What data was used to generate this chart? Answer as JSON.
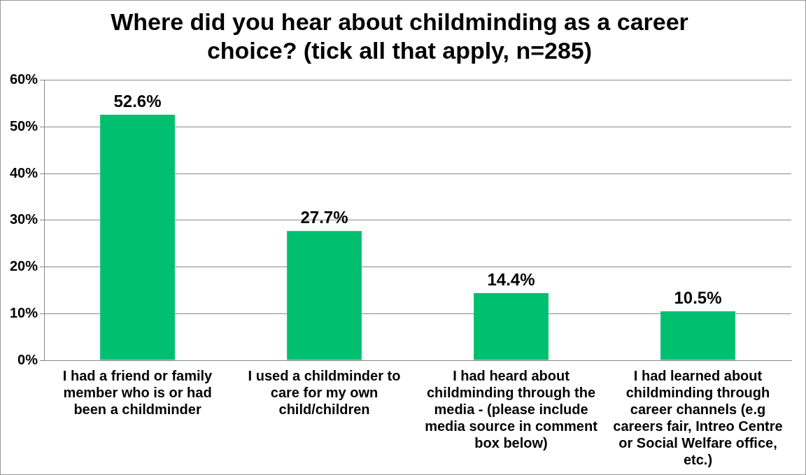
{
  "chart_data": {
    "type": "bar",
    "title": "Where did you hear about childminding as a career choice? (tick all that apply, n=285)",
    "categories": [
      "I had a friend or family member who is or had been a childminder",
      "I used a childminder to care for my own child/children",
      "I had heard about childminding through the media - (please include media source in comment box below)",
      "I had learned about childminding through career channels (e.g careers fair, Intreo Centre or Social Welfare office, etc.)"
    ],
    "values": [
      52.6,
      27.7,
      14.4,
      10.5
    ],
    "value_labels": [
      "52.6%",
      "27.7%",
      "14.4%",
      "10.5%"
    ],
    "color": "#00c070",
    "ylim": [
      0,
      60
    ],
    "yticks": [
      {
        "value": 0,
        "label": "0%"
      },
      {
        "value": 10,
        "label": "10%"
      },
      {
        "value": 20,
        "label": "20%"
      },
      {
        "value": 30,
        "label": "30%"
      },
      {
        "value": 40,
        "label": "40%"
      },
      {
        "value": 50,
        "label": "50%"
      },
      {
        "value": 60,
        "label": "60%"
      }
    ],
    "grid": "y"
  }
}
